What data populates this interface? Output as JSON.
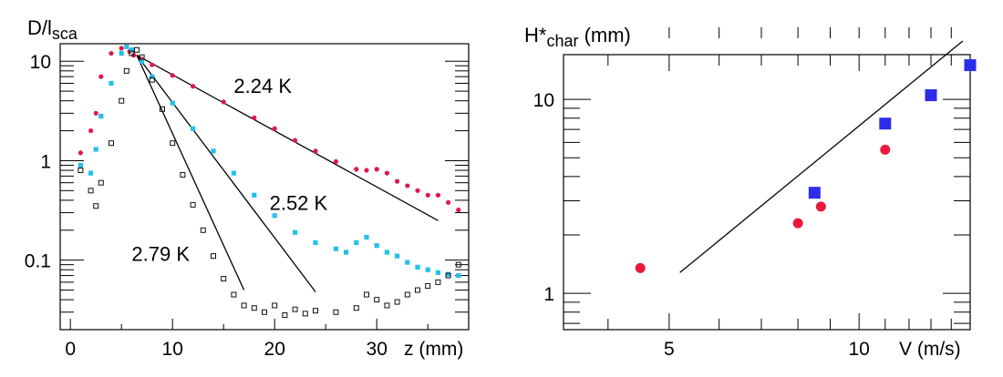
{
  "chart_data": [
    {
      "type": "scatter",
      "title": "",
      "ylabel": "D/l",
      "ylabel_sub": "sca",
      "xlabel": "z (mm)",
      "x_scale": "linear",
      "y_scale": "log",
      "xlim": [
        -1,
        39
      ],
      "ylim": [
        0.02,
        15
      ],
      "x_ticks": [
        0,
        10,
        20,
        30
      ],
      "x_tick_labels": [
        "0",
        "10",
        "20",
        "30"
      ],
      "y_ticks": [
        0.1,
        1,
        10
      ],
      "y_tick_labels": [
        "0.1",
        "1",
        "10"
      ],
      "colors": {
        "2.24 K": "#e0194a",
        "2.52 K": "#24c0ea",
        "2.79 K": "#111111"
      },
      "series": [
        {
          "name": "2.24 K",
          "marker": "dot",
          "x": [
            1,
            2,
            2.5,
            3,
            4,
            5,
            5.8,
            6.2,
            7,
            8,
            10,
            12,
            15,
            18,
            20,
            22,
            24,
            26,
            28,
            29,
            30,
            31,
            32,
            33,
            34,
            35,
            36,
            37,
            38
          ],
          "y": [
            1.2,
            2,
            3,
            7,
            12,
            13.5,
            12.5,
            11.5,
            10.5,
            9.2,
            7.2,
            5.6,
            3.9,
            2.7,
            2.1,
            1.6,
            1.25,
            0.98,
            0.82,
            0.8,
            0.82,
            0.75,
            0.62,
            0.56,
            0.5,
            0.45,
            0.45,
            0.38,
            0.32
          ]
        },
        {
          "name": "2.52 K",
          "marker": "square",
          "x": [
            1,
            2,
            2.5,
            3,
            4,
            5,
            5.5,
            6,
            7,
            8,
            10,
            12,
            14,
            16,
            18,
            20,
            22,
            24,
            26,
            27,
            28,
            29,
            30,
            31,
            32,
            33,
            34,
            35,
            36,
            37,
            38
          ],
          "y": [
            0.9,
            0.75,
            1.3,
            2.8,
            6,
            12,
            14,
            13,
            10,
            7,
            3.8,
            2.1,
            1.25,
            0.75,
            0.45,
            0.28,
            0.19,
            0.15,
            0.13,
            0.12,
            0.15,
            0.17,
            0.14,
            0.12,
            0.11,
            0.095,
            0.085,
            0.08,
            0.075,
            0.072,
            0.07
          ]
        },
        {
          "name": "2.79 K",
          "marker": "open-square",
          "x": [
            1,
            2,
            2.5,
            3,
            4,
            5,
            5.5,
            6,
            6.5,
            7,
            8,
            9,
            10,
            11,
            12,
            13,
            14,
            15,
            16,
            17,
            18,
            19,
            20,
            21,
            22,
            23,
            24,
            26,
            28,
            29,
            30,
            31,
            32,
            33,
            34,
            35,
            36,
            37,
            38
          ],
          "y": [
            0.8,
            0.5,
            0.35,
            0.6,
            1.5,
            4,
            8,
            12,
            13,
            11,
            6.5,
            3.3,
            1.5,
            0.72,
            0.36,
            0.2,
            0.11,
            0.065,
            0.045,
            0.035,
            0.033,
            0.03,
            0.035,
            0.028,
            0.032,
            0.029,
            0.031,
            0.03,
            0.033,
            0.045,
            0.04,
            0.035,
            0.038,
            0.045,
            0.05,
            0.055,
            0.06,
            0.07,
            0.09
          ]
        },
        {
          "name": "fit 2.24 K",
          "marker": "line",
          "x": [
            6.5,
            36
          ],
          "y": [
            11.5,
            0.25
          ]
        },
        {
          "name": "fit 2.52 K",
          "marker": "line",
          "x": [
            6.5,
            24
          ],
          "y": [
            11.5,
            0.048
          ]
        },
        {
          "name": "fit 2.79 K",
          "marker": "line",
          "x": [
            6.5,
            17
          ],
          "y": [
            11.5,
            0.05
          ]
        }
      ],
      "annotations": [
        {
          "text": "2.24 K",
          "x": 16,
          "y": 4.8
        },
        {
          "text": "2.52 K",
          "x": 19.5,
          "y": 0.32
        },
        {
          "text": "2.79 K",
          "x": 6,
          "y": 0.098
        }
      ]
    },
    {
      "type": "scatter",
      "title": "",
      "ylabel": "H*",
      "ylabel_sub": "char",
      "ylabel_suffix": " (mm)",
      "xlabel": "V (m/s)",
      "x_scale": "log",
      "y_scale": "log",
      "xlim": [
        3.4,
        15
      ],
      "ylim": [
        0.65,
        17
      ],
      "x_ticks": [
        5,
        10
      ],
      "x_tick_labels": [
        "5",
        "10"
      ],
      "y_ticks": [
        1,
        10
      ],
      "y_tick_labels": [
        "1",
        "10"
      ],
      "colors": {
        "circles": "#e8193c",
        "squares": "#2c2cea",
        "fit": "#000000"
      },
      "series": [
        {
          "name": "circles",
          "marker": "circle",
          "x": [
            4.5,
            8,
            8.7,
            11
          ],
          "y": [
            1.35,
            2.3,
            2.8,
            5.5
          ]
        },
        {
          "name": "squares",
          "marker": "square",
          "x": [
            8.5,
            11,
            13,
            15
          ],
          "y": [
            3.3,
            7.5,
            10.5,
            15
          ]
        },
        {
          "name": "fit",
          "marker": "line",
          "x": [
            5.2,
            14.6
          ],
          "y": [
            1.28,
            20
          ]
        }
      ]
    }
  ]
}
